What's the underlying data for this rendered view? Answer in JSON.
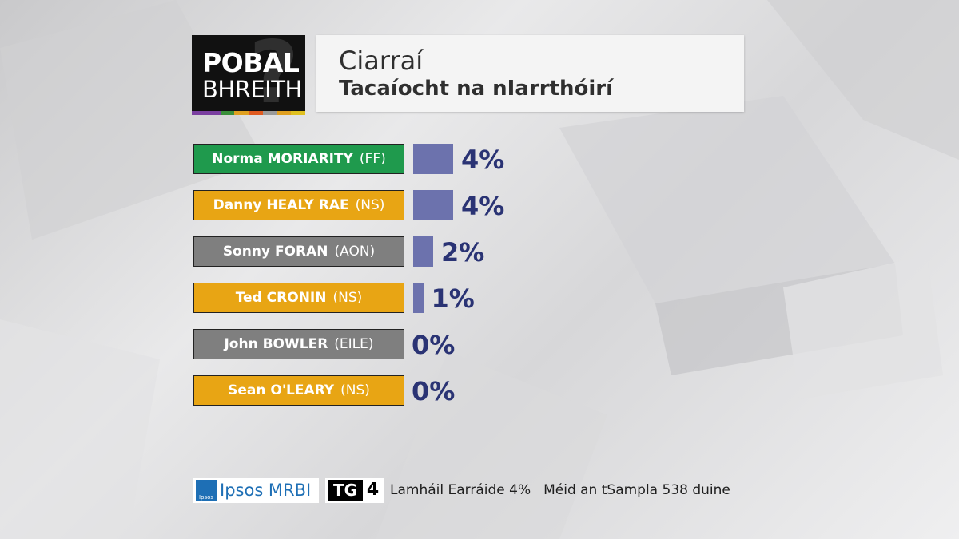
{
  "logo": {
    "line1": "POBAL",
    "line2": "BHREITH",
    "mark": "?",
    "stripe_colors": [
      "#7a3fa0",
      "#7a3fa0",
      "#3a8f3a",
      "#e0a020",
      "#e05a20",
      "#9a9a9a",
      "#e0a020",
      "#e0c020"
    ]
  },
  "title": {
    "constituency": "Ciarraí",
    "subtitle": "Tacaíocht na nIarrthóirí"
  },
  "colors": {
    "FF": "#1f9a4d",
    "NS": "#e8a514",
    "AON": "#7f7f7f",
    "EILE": "#7f7f7f",
    "bar": "#6c72ad",
    "value_text": "#2a3374"
  },
  "chart_data": {
    "type": "bar",
    "orientation": "horizontal",
    "categories": [
      "Norma MORIARITY (FF)",
      "Danny HEALY RAE (NS)",
      "Sonny FORAN (AON)",
      "Ted CRONIN (NS)",
      "John BOWLER (EILE)",
      "Sean O'LEARY (NS)"
    ],
    "values": [
      4,
      4,
      2,
      1,
      0,
      0
    ],
    "unit": "%",
    "candidates": [
      {
        "name": "Norma MORIARITY",
        "party": "(FF)",
        "party_code": "FF",
        "value": 4,
        "label": "4%"
      },
      {
        "name": "Danny HEALY RAE",
        "party": "(NS)",
        "party_code": "NS",
        "value": 4,
        "label": "4%"
      },
      {
        "name": "Sonny FORAN",
        "party": "(AON)",
        "party_code": "AON",
        "value": 2,
        "label": "2%"
      },
      {
        "name": "Ted CRONIN",
        "party": "(NS)",
        "party_code": "NS",
        "value": 1,
        "label": "1%"
      },
      {
        "name": "John BOWLER",
        "party": "(EILE)",
        "party_code": "EILE",
        "value": 0,
        "label": "0%"
      },
      {
        "name": "Sean O'LEARY",
        "party": "(NS)",
        "party_code": "NS",
        "value": 0,
        "label": "0%"
      }
    ],
    "title": "Tacaíocht na nIarrthóirí",
    "xlabel": "",
    "ylabel": "",
    "xlim": [
      0,
      4
    ],
    "grid": false,
    "legend": "none"
  },
  "footer": {
    "ipsos_brand": "Ipsos MRBI",
    "ipsos_mark": "Ipsos",
    "tg4_brand_tg": "TG",
    "tg4_brand_4": "4",
    "margin_of_error": "Lamháil Earráide 4%",
    "sample_size": "Méid an tSampla 538 duine"
  }
}
